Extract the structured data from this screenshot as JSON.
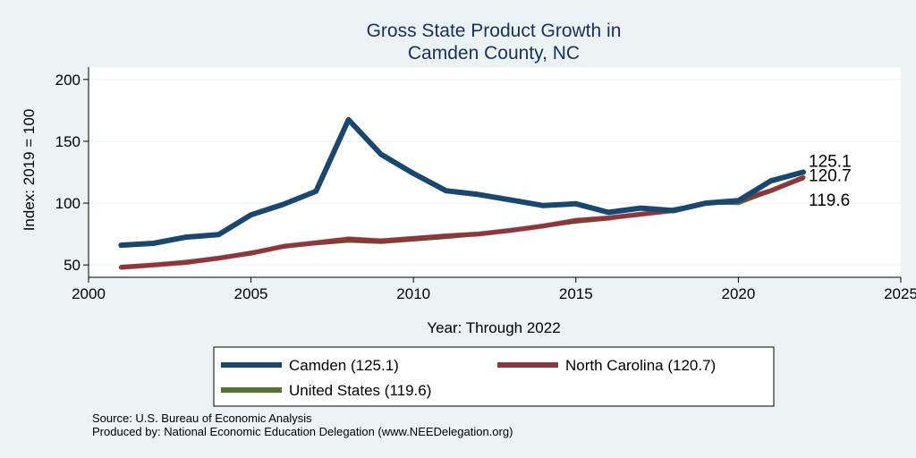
{
  "chart_data": {
    "type": "line",
    "title": [
      "Gross State Product Growth in",
      "Camden County, NC"
    ],
    "xlabel": "Year: Through 2022",
    "ylabel": "Index: 2019 = 100",
    "xlim": [
      2000,
      2025
    ],
    "ylim": [
      40,
      210
    ],
    "xticks": [
      2000,
      2005,
      2010,
      2015,
      2020,
      2025
    ],
    "yticks": [
      50,
      100,
      150,
      200
    ],
    "x": [
      2001,
      2002,
      2003,
      2004,
      2005,
      2006,
      2007,
      2008,
      2009,
      2010,
      2011,
      2012,
      2013,
      2014,
      2015,
      2016,
      2017,
      2018,
      2019,
      2020,
      2021,
      2022
    ],
    "series": [
      {
        "name": "Camden",
        "legend_label": "Camden  (125.1)",
        "color": "#1a476f",
        "end_label": "125.1",
        "values": [
          66,
          67.5,
          72.5,
          74.5,
          90.5,
          99,
          109.5,
          167.5,
          139.5,
          124,
          110,
          107,
          102.5,
          98,
          99.5,
          92.5,
          96,
          94,
          100,
          102,
          118,
          125.1
        ]
      },
      {
        "name": "North Carolina",
        "legend_label": "North Carolina (120.7)",
        "color": "#90353b",
        "end_label": "120.7",
        "values": [
          48,
          50,
          52,
          55.5,
          59.5,
          65,
          68,
          71,
          69.5,
          71.5,
          73.5,
          75,
          78,
          81.5,
          86,
          88,
          91,
          94,
          100,
          102,
          110,
          120.7
        ]
      },
      {
        "name": "United States",
        "legend_label": "United States (119.6)",
        "color": "#55752f",
        "end_label": "119.6",
        "values": [
          49,
          50.5,
          53,
          56,
          60.5,
          64.5,
          67,
          69,
          68,
          70,
          72,
          74.5,
          77.5,
          81,
          84.5,
          87,
          91.5,
          95.5,
          100,
          99.5,
          109.5,
          119.6
        ]
      }
    ],
    "legend_position": "bottom",
    "notes": [
      "Source: U.S. Bureau of Economic Analysis",
      "Produced by: National Economic Education Delegation (www.NEEDelegation.org)"
    ]
  }
}
